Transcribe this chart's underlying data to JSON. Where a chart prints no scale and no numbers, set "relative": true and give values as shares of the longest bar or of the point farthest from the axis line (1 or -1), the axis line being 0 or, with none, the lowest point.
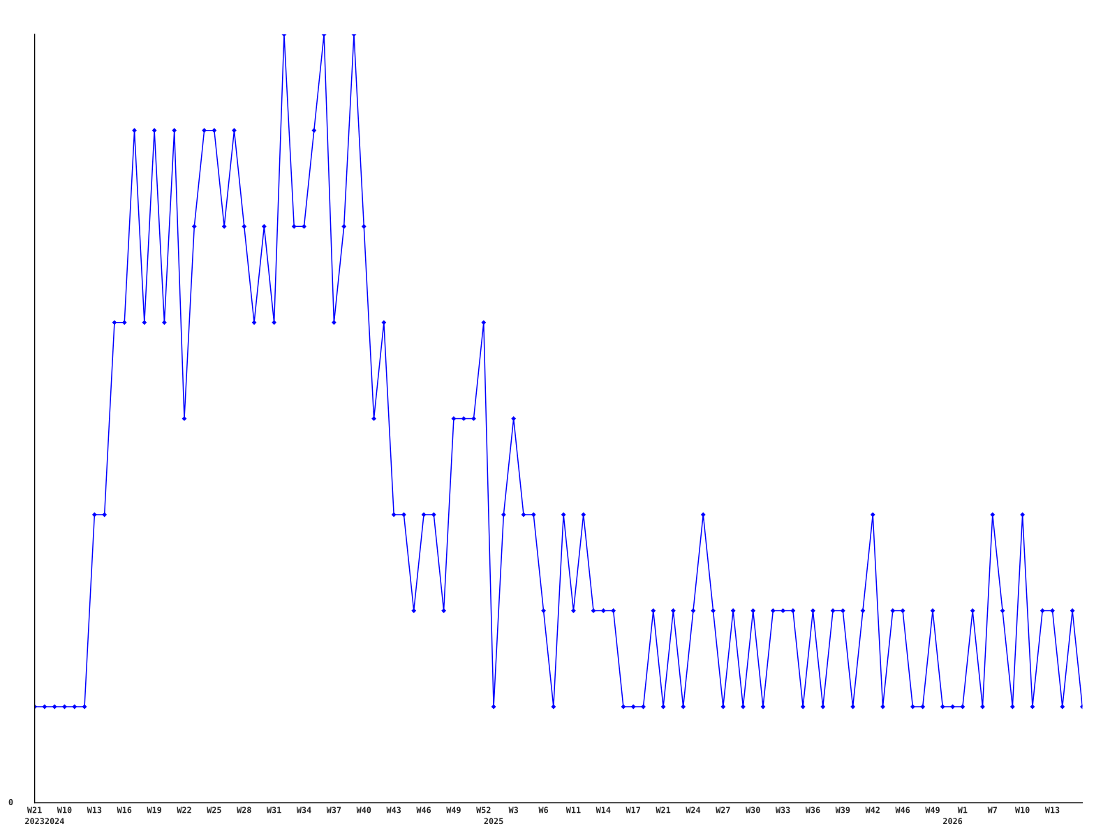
{
  "chart_data": {
    "type": "line",
    "relative": true,
    "marker": "diamond",
    "line_style": "solid",
    "grid": false,
    "legend": false,
    "categories": [
      "W21\n2023",
      null,
      "\n2024",
      "W10",
      null,
      null,
      "W13",
      null,
      null,
      "W16",
      null,
      null,
      "W19",
      null,
      null,
      "W22",
      null,
      null,
      "W25",
      null,
      null,
      "W28",
      null,
      null,
      "W31",
      null,
      null,
      "W34",
      null,
      null,
      "W37",
      null,
      null,
      "W40",
      null,
      null,
      "W43",
      null,
      null,
      "W46",
      null,
      null,
      "W49",
      null,
      null,
      "W52",
      "\n2025",
      null,
      "W3",
      null,
      null,
      "W6",
      null,
      null,
      "W11",
      null,
      null,
      "W14",
      null,
      null,
      "W17",
      null,
      null,
      "W21",
      null,
      null,
      "W24",
      null,
      null,
      "W27",
      null,
      null,
      "W30",
      null,
      null,
      "W33",
      null,
      null,
      "W36",
      null,
      null,
      "W39",
      null,
      null,
      "W42",
      null,
      null,
      "W46",
      null,
      null,
      "W49",
      null,
      "\n2026",
      "W1",
      null,
      null,
      "W7",
      null,
      null,
      "W10",
      null,
      null,
      "W13",
      null,
      null,
      null
    ],
    "series": [
      {
        "color": "#0000ff",
        "values": [
          0.125,
          0.125,
          0.125,
          0.125,
          0.125,
          0.125,
          0.375,
          0.375,
          0.625,
          0.625,
          0.875,
          0.625,
          0.875,
          0.625,
          0.875,
          0.5,
          0.75,
          0.875,
          0.875,
          0.75,
          0.875,
          0.75,
          0.625,
          0.75,
          0.625,
          1,
          0.75,
          0.75,
          0.875,
          1,
          0.625,
          0.75,
          1,
          0.75,
          0.5,
          0.625,
          0.375,
          0.375,
          0.25,
          0.375,
          0.375,
          0.25,
          0.5,
          0.5,
          0.5,
          0.625,
          0.125,
          0.375,
          0.5,
          0.375,
          0.375,
          0.25,
          0.125,
          0.375,
          0.25,
          0.375,
          0.25,
          0.25,
          0.25,
          0.125,
          0.125,
          0.125,
          0.25,
          0.125,
          0.25,
          0.125,
          0.25,
          0.375,
          0.25,
          0.125,
          0.25,
          0.125,
          0.25,
          0.125,
          0.25,
          0.25,
          0.25,
          0.125,
          0.25,
          0.125,
          0.25,
          0.25,
          0.125,
          0.25,
          0.375,
          0.125,
          0.25,
          0.25,
          0.125,
          0.125,
          0.25,
          0.125,
          0.125,
          0.125,
          0.25,
          0.125,
          0.375,
          0.25,
          0.125,
          0.375,
          0.125,
          0.25,
          0.25,
          0.125,
          0.25,
          0.125
        ]
      }
    ],
    "annotations": [
      "0"
    ]
  }
}
